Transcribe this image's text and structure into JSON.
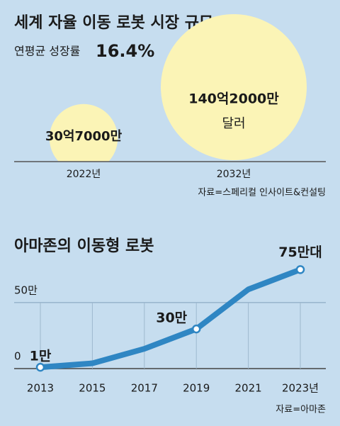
{
  "chart_data": [
    {
      "type": "bubble",
      "title": "세계 자율 이동 로봇 시장 규모",
      "subtitle": "연평균 성장률",
      "annotation": "16.4%",
      "categories": [
        "2022년",
        "2032년"
      ],
      "values": [
        3070000000,
        14020000000
      ],
      "value_labels": [
        "30억7000만",
        "140억2000만"
      ],
      "unit_label": "달러",
      "color": "#fbf4b6",
      "source": "자료=스페리컬 인사이트&컨설팅"
    },
    {
      "type": "line",
      "title": "아마존의 이동형 로봇",
      "x": [
        2013,
        2015,
        2017,
        2019,
        2021,
        2023
      ],
      "series": [
        {
          "name": "아마존 이동형 로봇",
          "color": "#2f86c3",
          "values": [
            1,
            4,
            15,
            30,
            60,
            75
          ],
          "value_labels": [
            "1만",
            null,
            null,
            "30만",
            null,
            "75만대"
          ]
        }
      ],
      "xlim": [
        2013,
        2023
      ],
      "xticks": [
        2013,
        2015,
        2017,
        2019,
        2021,
        {
          "value": 2023,
          "label": "2023년"
        }
      ],
      "ylim": [
        0,
        80
      ],
      "yticks": [
        0,
        {
          "value": 50,
          "label": "50만"
        }
      ],
      "grid": true,
      "source": "자료=아마존"
    }
  ]
}
